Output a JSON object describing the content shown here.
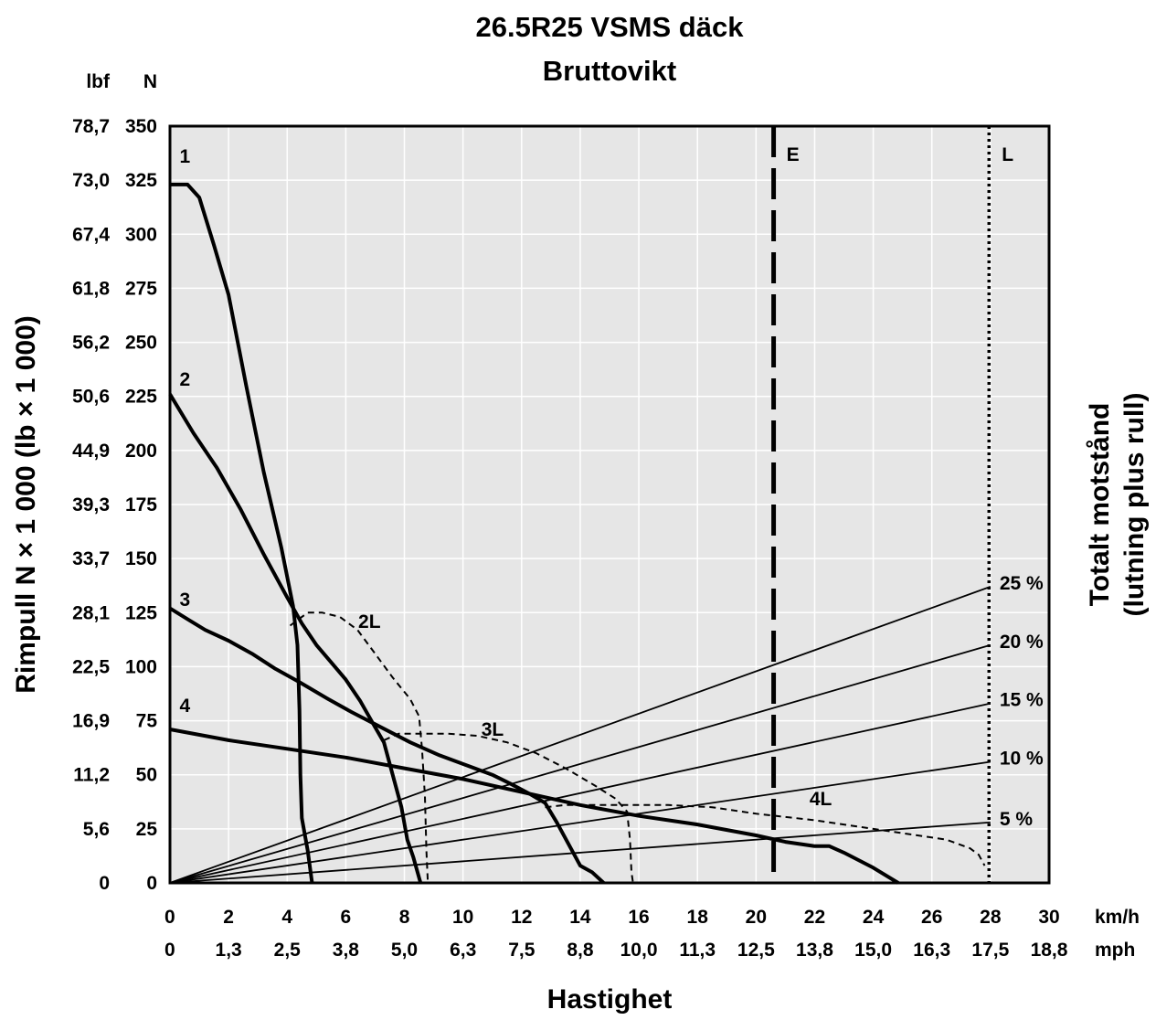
{
  "chart_data": {
    "type": "line",
    "title": "26.5R25 VSMS däck",
    "subtitle": "Bruttovikt",
    "xlabel": "Hastighet",
    "ylabel": "Rimpull N × 1 000 (lb × 1 000)",
    "ylabel_right": [
      "Totalt motstånd",
      "(lutning plus rull)"
    ],
    "x_unit_primary": "km/h",
    "x_unit_secondary": "mph",
    "y_unit_left_outer": "lbf",
    "y_unit_left_inner": "N",
    "xlim": [
      0,
      30
    ],
    "ylim": [
      0,
      350
    ],
    "grid": true,
    "x_ticks_kmh": [
      "0",
      "2",
      "4",
      "6",
      "8",
      "10",
      "12",
      "14",
      "16",
      "18",
      "20",
      "22",
      "24",
      "26",
      "28",
      "30"
    ],
    "x_ticks_mph": [
      "0",
      "1,3",
      "2,5",
      "3,8",
      "5,0",
      "6,3",
      "7,5",
      "8,8",
      "10,0",
      "11,3",
      "12,5",
      "13,8",
      "15,0",
      "16,3",
      "17,5",
      "18,8"
    ],
    "y_ticks_n": [
      "0",
      "25",
      "50",
      "75",
      "100",
      "125",
      "150",
      "175",
      "200",
      "225",
      "250",
      "275",
      "300",
      "325",
      "350"
    ],
    "y_ticks_lbf": [
      "0",
      "5,6",
      "11,2",
      "16,9",
      "22,5",
      "28,1",
      "33,7",
      "39,3",
      "44,9",
      "50,6",
      "56,2",
      "61,8",
      "67,4",
      "73,0",
      "78,7"
    ],
    "series": [
      {
        "name": "1",
        "style": "solid-thick",
        "label_at": [
          0.7,
          333
        ],
        "points": [
          [
            0,
            323
          ],
          [
            0.6,
            323
          ],
          [
            1,
            317
          ],
          [
            1.5,
            295
          ],
          [
            2,
            272
          ],
          [
            2.6,
            230
          ],
          [
            3.2,
            190
          ],
          [
            3.8,
            155
          ],
          [
            4.2,
            128
          ],
          [
            4.35,
            110
          ],
          [
            4.42,
            80
          ],
          [
            4.45,
            50
          ],
          [
            4.5,
            30
          ],
          [
            4.7,
            15
          ],
          [
            4.85,
            0
          ]
        ]
      },
      {
        "name": "2",
        "style": "solid-thick",
        "label_at": [
          0.7,
          230
        ],
        "points": [
          [
            0,
            226
          ],
          [
            0.8,
            208
          ],
          [
            1.6,
            192
          ],
          [
            2.4,
            173
          ],
          [
            3.2,
            152
          ],
          [
            4,
            132
          ],
          [
            4.5,
            120
          ],
          [
            5,
            110
          ],
          [
            5.5,
            102
          ],
          [
            6,
            94
          ],
          [
            6.5,
            84
          ],
          [
            7,
            72
          ],
          [
            7.3,
            65
          ],
          [
            7.6,
            50
          ],
          [
            7.9,
            35
          ],
          [
            8.1,
            20
          ],
          [
            8.3,
            12
          ],
          [
            8.55,
            0
          ]
        ]
      },
      {
        "name": "3",
        "style": "solid-thick",
        "label_at": [
          0.7,
          128
        ],
        "points": [
          [
            0,
            127
          ],
          [
            0.6,
            122
          ],
          [
            1.2,
            117
          ],
          [
            2,
            112
          ],
          [
            2.8,
            106
          ],
          [
            3.6,
            99
          ],
          [
            4.4,
            93
          ],
          [
            5.4,
            85
          ],
          [
            6.2,
            79
          ],
          [
            7.2,
            72
          ],
          [
            8.2,
            65
          ],
          [
            9.2,
            59
          ],
          [
            10.2,
            54
          ],
          [
            11,
            50
          ],
          [
            11.6,
            46
          ],
          [
            12.3,
            41
          ],
          [
            12.8,
            37
          ],
          [
            13.2,
            28
          ],
          [
            13.6,
            18
          ],
          [
            14,
            8
          ],
          [
            14.4,
            5
          ],
          [
            14.8,
            0
          ]
        ]
      },
      {
        "name": "4",
        "style": "solid-thick",
        "label_at": [
          0.7,
          79
        ],
        "points": [
          [
            0,
            71
          ],
          [
            2,
            66
          ],
          [
            4,
            62
          ],
          [
            6,
            58
          ],
          [
            8,
            53
          ],
          [
            10,
            48
          ],
          [
            12,
            42
          ],
          [
            14,
            36
          ],
          [
            16,
            31
          ],
          [
            18,
            27
          ],
          [
            20,
            22
          ],
          [
            21,
            19
          ],
          [
            22,
            17
          ],
          [
            22.5,
            17
          ],
          [
            23,
            14
          ],
          [
            24,
            7
          ],
          [
            24.85,
            0
          ]
        ]
      },
      {
        "name": "2L",
        "style": "dashed",
        "label_at": [
          6.8,
          118
        ],
        "points": [
          [
            4.1,
            119
          ],
          [
            4.7,
            125
          ],
          [
            5.2,
            125
          ],
          [
            5.8,
            123
          ],
          [
            6.4,
            117
          ],
          [
            7,
            106
          ],
          [
            7.6,
            95
          ],
          [
            8.2,
            85
          ],
          [
            8.5,
            77
          ],
          [
            8.6,
            62
          ],
          [
            8.7,
            40
          ],
          [
            8.75,
            15
          ],
          [
            8.8,
            0
          ]
        ]
      },
      {
        "name": "3L",
        "style": "dashed",
        "label_at": [
          11,
          68
        ],
        "points": [
          [
            7.3,
            66
          ],
          [
            7.8,
            69
          ],
          [
            8.5,
            69
          ],
          [
            9.5,
            69
          ],
          [
            10.5,
            68
          ],
          [
            11.5,
            65
          ],
          [
            12.5,
            60
          ],
          [
            13.5,
            53
          ],
          [
            14.5,
            45
          ],
          [
            15.2,
            39
          ],
          [
            15.6,
            33
          ],
          [
            15.7,
            20
          ],
          [
            15.75,
            5
          ],
          [
            15.8,
            0
          ]
        ]
      },
      {
        "name": "4L",
        "style": "dashed",
        "label_at": [
          22.2,
          36
        ],
        "points": [
          [
            12.8,
            35
          ],
          [
            13.5,
            36
          ],
          [
            15,
            36
          ],
          [
            17,
            36
          ],
          [
            18.5,
            35
          ],
          [
            20,
            32
          ],
          [
            22,
            29
          ],
          [
            23.5,
            26
          ],
          [
            25,
            23
          ],
          [
            26.5,
            20
          ],
          [
            27.3,
            16
          ],
          [
            27.6,
            13
          ],
          [
            27.8,
            8
          ]
        ]
      }
    ],
    "grade_lines": [
      {
        "label": "25 %",
        "y_end": 137
      },
      {
        "label": "20 %",
        "y_end": 110
      },
      {
        "label": "15 %",
        "y_end": 83
      },
      {
        "label": "10 %",
        "y_end": 56
      },
      {
        "label": "5 %",
        "y_end": 28
      }
    ],
    "grade_lines_x_end": 28,
    "vertical_markers": [
      {
        "label": "E",
        "x": 20.6,
        "style": "dashed"
      },
      {
        "label": "L",
        "x": 27.95,
        "style": "dotted"
      }
    ]
  }
}
